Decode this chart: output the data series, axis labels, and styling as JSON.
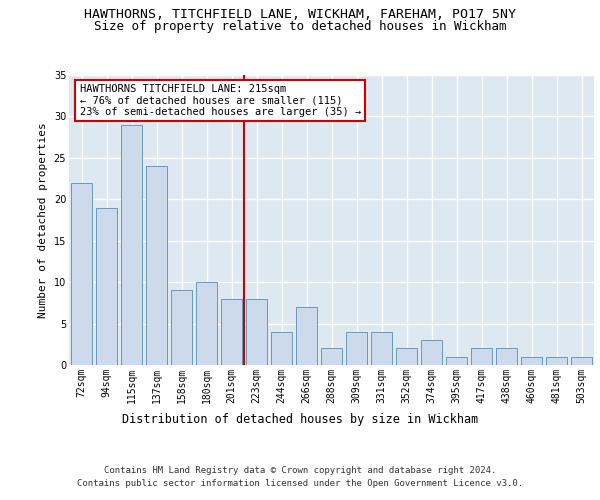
{
  "title": "HAWTHORNS, TITCHFIELD LANE, WICKHAM, FAREHAM, PO17 5NY",
  "subtitle": "Size of property relative to detached houses in Wickham",
  "xlabel": "Distribution of detached houses by size in Wickham",
  "ylabel": "Number of detached properties",
  "categories": [
    "72sqm",
    "94sqm",
    "115sqm",
    "137sqm",
    "158sqm",
    "180sqm",
    "201sqm",
    "223sqm",
    "244sqm",
    "266sqm",
    "288sqm",
    "309sqm",
    "331sqm",
    "352sqm",
    "374sqm",
    "395sqm",
    "417sqm",
    "438sqm",
    "460sqm",
    "481sqm",
    "503sqm"
  ],
  "values": [
    22,
    19,
    29,
    24,
    9,
    10,
    8,
    8,
    4,
    7,
    2,
    4,
    4,
    2,
    3,
    1,
    2,
    2,
    1,
    1,
    1
  ],
  "bar_color": "#ccdaeb",
  "bar_edge_color": "#6699bb",
  "background_color": "#dde8f0",
  "grid_color": "#ffffff",
  "vline_x_index": 7,
  "vline_color": "#cc0000",
  "annotation_line1": "HAWTHORNS TITCHFIELD LANE: 215sqm",
  "annotation_line2": "← 76% of detached houses are smaller (115)",
  "annotation_line3": "23% of semi-detached houses are larger (35) →",
  "annotation_box_color": "#ffffff",
  "annotation_box_edge": "#cc0000",
  "footer_line1": "Contains HM Land Registry data © Crown copyright and database right 2024.",
  "footer_line2": "Contains public sector information licensed under the Open Government Licence v3.0.",
  "ylim": [
    0,
    35
  ],
  "yticks": [
    0,
    5,
    10,
    15,
    20,
    25,
    30,
    35
  ],
  "title_fontsize": 9.5,
  "subtitle_fontsize": 9,
  "ylabel_fontsize": 8,
  "xlabel_fontsize": 8.5,
  "tick_fontsize": 7,
  "annotation_fontsize": 7.5,
  "footer_fontsize": 6.5
}
